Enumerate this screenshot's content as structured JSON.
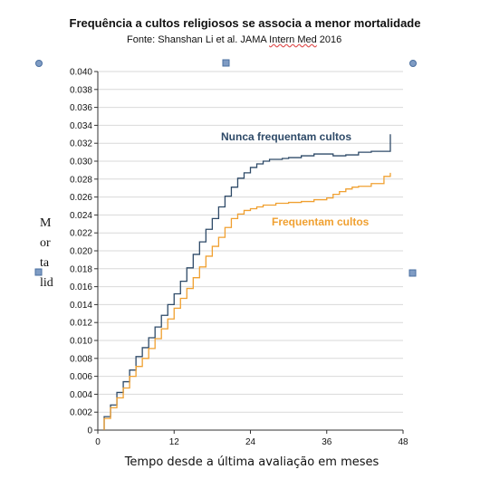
{
  "chart_data": {
    "type": "line",
    "title": "Frequência a cultos religiosos se associa a menor mortalidade",
    "subtitle_prefix": "Fonte: Shanshan Li et al. JAMA ",
    "subtitle_underlined": "Intern Med",
    "subtitle_suffix": " 2016",
    "xlabel": "Tempo desde a última avaliação em meses",
    "ylabel_lines": [
      "M",
      "or",
      "ta",
      "lid"
    ],
    "xlim": [
      0,
      48
    ],
    "ylim": [
      0,
      0.04
    ],
    "xticks": [
      "0",
      "12",
      "24",
      "36",
      "48"
    ],
    "yticks": [
      "0",
      "0.002",
      "0.004",
      "0.006",
      "0.008",
      "0.010",
      "0.012",
      "0.014",
      "0.016",
      "0.018",
      "0.020",
      "0.022",
      "0.024",
      "0.026",
      "0.028",
      "0.030",
      "0.032",
      "0.034",
      "0.036",
      "0.038",
      "0.040"
    ],
    "grid": true,
    "series": [
      {
        "name": "Nunca frequentam cultos",
        "color": "#2e4a68",
        "x": [
          1,
          2,
          3,
          4,
          5,
          6,
          7,
          8,
          9,
          10,
          11,
          12,
          13,
          14,
          15,
          16,
          17,
          18,
          19,
          20,
          21,
          22,
          23,
          24,
          25,
          26,
          27,
          28,
          29,
          30,
          32,
          34,
          37,
          39,
          41,
          43,
          46
        ],
        "y": [
          0.0015,
          0.0028,
          0.0042,
          0.0054,
          0.0067,
          0.0082,
          0.0092,
          0.0103,
          0.0115,
          0.0128,
          0.014,
          0.0152,
          0.0166,
          0.0181,
          0.0196,
          0.021,
          0.0224,
          0.0236,
          0.0249,
          0.0261,
          0.0271,
          0.0281,
          0.0287,
          0.0293,
          0.0297,
          0.03,
          0.0302,
          0.0302,
          0.0303,
          0.0304,
          0.0306,
          0.0308,
          0.0306,
          0.0307,
          0.031,
          0.0311,
          0.033
        ]
      },
      {
        "name": "Frequentam cultos",
        "color": "#f0a030",
        "x": [
          1,
          2,
          3,
          4,
          5,
          6,
          7,
          8,
          9,
          10,
          11,
          12,
          13,
          14,
          15,
          16,
          17,
          18,
          19,
          20,
          21,
          22,
          23,
          24,
          25,
          26,
          28,
          30,
          32,
          34,
          36,
          37,
          38,
          39,
          40,
          41,
          43,
          45,
          46
        ],
        "y": [
          0.0013,
          0.0025,
          0.0036,
          0.0047,
          0.006,
          0.0071,
          0.008,
          0.0091,
          0.0102,
          0.0113,
          0.0124,
          0.0136,
          0.0147,
          0.0158,
          0.017,
          0.0182,
          0.0194,
          0.0205,
          0.0215,
          0.0226,
          0.0236,
          0.0241,
          0.0245,
          0.0247,
          0.0249,
          0.0251,
          0.0253,
          0.0254,
          0.0255,
          0.0257,
          0.0259,
          0.0263,
          0.0266,
          0.0269,
          0.0271,
          0.0272,
          0.0275,
          0.0283,
          0.0287
        ]
      }
    ]
  }
}
